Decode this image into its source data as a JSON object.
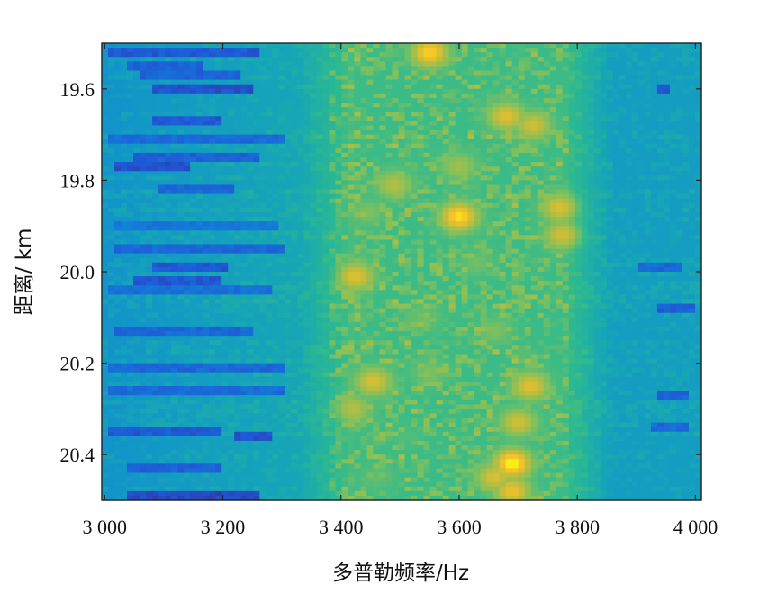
{
  "chart_data": {
    "type": "heatmap",
    "title": "",
    "xlabel": "多普勒频率/Hz",
    "ylabel": "距离/ km",
    "xlim": [
      2995,
      4010
    ],
    "ylim": [
      19.5,
      20.5
    ],
    "y_inverted": true,
    "x_ticks": [
      3000,
      3200,
      3400,
      3600,
      3800,
      4000
    ],
    "x_tick_labels": [
      "3 000",
      "3 200",
      "3 400",
      "3 600",
      "3 800",
      "4 000"
    ],
    "y_ticks": [
      19.6,
      19.8,
      20.0,
      20.2,
      20.4
    ],
    "y_tick_labels": [
      "19.6",
      "19.8",
      "20.0",
      "20.2",
      "20.4"
    ],
    "colormap": "parula",
    "colorscale": [
      "#352a87",
      "#2058d6",
      "#0f87d8",
      "#16a5b8",
      "#2dba8f",
      "#82c05c",
      "#c5bd3a",
      "#f4c22a",
      "#f9fb0e"
    ],
    "grid": false,
    "hotspots": [
      {
        "x": 3550,
        "y": 19.52,
        "value": 0.92
      },
      {
        "x": 3680,
        "y": 19.66,
        "value": 0.82
      },
      {
        "x": 3725,
        "y": 19.68,
        "value": 0.78
      },
      {
        "x": 3600,
        "y": 19.77,
        "value": 0.68
      },
      {
        "x": 3490,
        "y": 19.81,
        "value": 0.72
      },
      {
        "x": 3600,
        "y": 19.88,
        "value": 0.95
      },
      {
        "x": 3770,
        "y": 19.86,
        "value": 0.8
      },
      {
        "x": 3775,
        "y": 19.92,
        "value": 0.78
      },
      {
        "x": 3445,
        "y": 19.87,
        "value": 0.62
      },
      {
        "x": 3425,
        "y": 20.01,
        "value": 0.82
      },
      {
        "x": 3630,
        "y": 19.98,
        "value": 0.6
      },
      {
        "x": 3540,
        "y": 20.1,
        "value": 0.6
      },
      {
        "x": 3660,
        "y": 20.13,
        "value": 0.62
      },
      {
        "x": 3455,
        "y": 20.24,
        "value": 0.8
      },
      {
        "x": 3420,
        "y": 20.3,
        "value": 0.72
      },
      {
        "x": 3720,
        "y": 20.25,
        "value": 0.82
      },
      {
        "x": 3700,
        "y": 20.33,
        "value": 0.78
      },
      {
        "x": 3550,
        "y": 20.22,
        "value": 0.62
      },
      {
        "x": 3690,
        "y": 20.42,
        "value": 1.0
      },
      {
        "x": 3660,
        "y": 20.45,
        "value": 0.8
      },
      {
        "x": 3690,
        "y": 20.48,
        "value": 0.85
      },
      {
        "x": 3460,
        "y": 20.45,
        "value": 0.58
      },
      {
        "x": 3510,
        "y": 20.36,
        "value": 0.55
      }
    ],
    "dark_streaks": [
      {
        "y": 19.52,
        "x_from": 3010,
        "x_to": 3260,
        "value": 0.1
      },
      {
        "y": 19.55,
        "x_from": 3040,
        "x_to": 3170,
        "value": 0.12
      },
      {
        "y": 19.6,
        "x_from": 3080,
        "x_to": 3250,
        "value": 0.08
      },
      {
        "y": 19.57,
        "x_from": 3060,
        "x_to": 3230,
        "value": 0.13
      },
      {
        "y": 19.67,
        "x_from": 3080,
        "x_to": 3200,
        "value": 0.1
      },
      {
        "y": 19.71,
        "x_from": 3010,
        "x_to": 3300,
        "value": 0.15
      },
      {
        "y": 19.75,
        "x_from": 3050,
        "x_to": 3260,
        "value": 0.12
      },
      {
        "y": 19.77,
        "x_from": 3020,
        "x_to": 3140,
        "value": 0.08
      },
      {
        "y": 19.82,
        "x_from": 3090,
        "x_to": 3220,
        "value": 0.14
      },
      {
        "y": 19.95,
        "x_from": 3020,
        "x_to": 3300,
        "value": 0.14
      },
      {
        "y": 19.99,
        "x_from": 3080,
        "x_to": 3210,
        "value": 0.1
      },
      {
        "y": 20.02,
        "x_from": 3050,
        "x_to": 3200,
        "value": 0.1
      },
      {
        "y": 20.04,
        "x_from": 3010,
        "x_to": 3280,
        "value": 0.16
      },
      {
        "y": 20.13,
        "x_from": 3020,
        "x_to": 3250,
        "value": 0.14
      },
      {
        "y": 20.21,
        "x_from": 3010,
        "x_to": 3300,
        "value": 0.14
      },
      {
        "y": 20.26,
        "x_from": 3010,
        "x_to": 3310,
        "value": 0.15
      },
      {
        "y": 20.35,
        "x_from": 3010,
        "x_to": 3200,
        "value": 0.1
      },
      {
        "y": 20.36,
        "x_from": 3220,
        "x_to": 3280,
        "value": 0.08
      },
      {
        "y": 20.43,
        "x_from": 3040,
        "x_to": 3200,
        "value": 0.12
      },
      {
        "y": 20.49,
        "x_from": 3040,
        "x_to": 3260,
        "value": 0.06
      },
      {
        "y": 20.08,
        "x_from": 3930,
        "x_to": 4000,
        "value": 0.12
      },
      {
        "y": 19.99,
        "x_from": 3900,
        "x_to": 3980,
        "value": 0.14
      },
      {
        "y": 20.27,
        "x_from": 3930,
        "x_to": 3990,
        "value": 0.13
      },
      {
        "y": 20.34,
        "x_from": 3920,
        "x_to": 3990,
        "value": 0.15
      },
      {
        "y": 19.6,
        "x_from": 3930,
        "x_to": 3960,
        "value": 0.1
      },
      {
        "y": 19.9,
        "x_from": 3020,
        "x_to": 3290,
        "value": 0.18
      }
    ]
  }
}
